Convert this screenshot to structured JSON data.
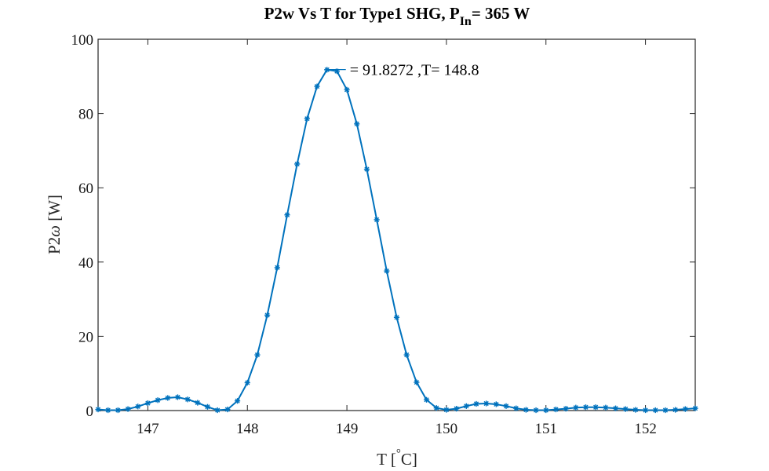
{
  "chart_data": {
    "type": "line",
    "title": {
      "main": "P2w Vs T for Type1 SHG, P",
      "subscript": "In",
      "suffix": "= 365 W"
    },
    "xlabel": {
      "main": "T [",
      "superscript": "°",
      "suffix": "C]"
    },
    "ylabel": {
      "main": "P2",
      "symbol": "ω",
      "suffix": " [W]"
    },
    "xlim": [
      146.5,
      152.5
    ],
    "ylim": [
      0,
      100
    ],
    "x_ticks": [
      147,
      148,
      149,
      150,
      151,
      152
    ],
    "y_ticks": [
      0,
      20,
      40,
      60,
      80,
      100
    ],
    "grid": false,
    "line_color": "#0072BD",
    "marker": "asterisk",
    "annotation": {
      "text": "= 91.8272 ,T= 148.8",
      "x": 148.8,
      "y": 91.8272
    },
    "series": [
      {
        "x": [
          146.5,
          146.6,
          146.7,
          146.8,
          146.9,
          147.0,
          147.1,
          147.2,
          147.3,
          147.4,
          147.5,
          147.6,
          147.7,
          147.8,
          147.9,
          148.0,
          148.1,
          148.2,
          148.3,
          148.4,
          148.5,
          148.6,
          148.7,
          148.8,
          148.9,
          149.0,
          149.1,
          149.2,
          149.3,
          149.4,
          149.5,
          149.6,
          149.7,
          149.8,
          149.9,
          150.0,
          150.1,
          150.2,
          150.3,
          150.4,
          150.5,
          150.6,
          150.7,
          150.8,
          150.9,
          151.0,
          151.1,
          151.2,
          151.3,
          151.4,
          151.5,
          151.6,
          151.7,
          151.8,
          151.9,
          152.0,
          152.1,
          152.2,
          152.3,
          152.4,
          152.5
        ],
        "y": [
          0.3,
          0.1,
          0.1,
          0.4,
          1.1,
          2.0,
          2.8,
          3.4,
          3.6,
          3.0,
          2.1,
          1.0,
          0.1,
          0.3,
          2.6,
          7.5,
          15.0,
          25.7,
          38.5,
          52.7,
          66.4,
          78.6,
          87.3,
          91.8,
          91.4,
          86.4,
          77.2,
          65.0,
          51.4,
          37.6,
          25.1,
          15.0,
          7.6,
          2.9,
          0.7,
          0.2,
          0.5,
          1.2,
          1.8,
          1.9,
          1.7,
          1.2,
          0.6,
          0.2,
          0.1,
          0.1,
          0.3,
          0.5,
          0.8,
          0.9,
          0.9,
          0.8,
          0.6,
          0.4,
          0.2,
          0.1,
          0.1,
          0.1,
          0.2,
          0.4,
          0.6
        ]
      }
    ]
  }
}
